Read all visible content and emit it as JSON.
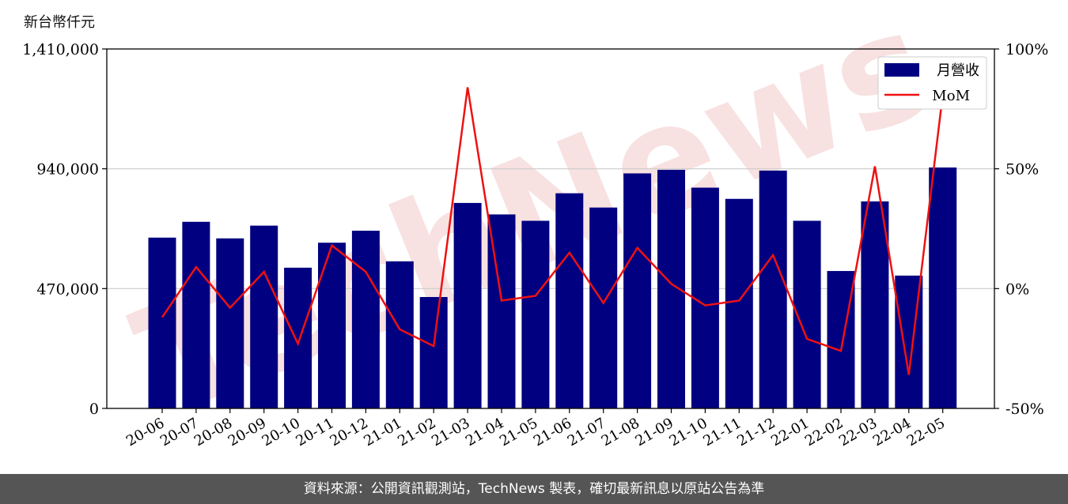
{
  "colors": {
    "bar": "#000080",
    "line": "#ee1111",
    "grid": "#cccccc",
    "watermark": "#f3c9c9",
    "footer_bg": "#555555"
  },
  "unit_label": "新台幣仟元",
  "watermark_text": "TechNews",
  "footer_text": "資料來源：公開資訊觀測站，TechNews 製表，確切最新訊息以原站公告為準",
  "chart_data": {
    "type": "bar",
    "categories": [
      "20-06",
      "20-07",
      "20-08",
      "20-09",
      "20-10",
      "20-11",
      "20-12",
      "21-01",
      "21-02",
      "21-03",
      "21-04",
      "21-05",
      "21-06",
      "21-07",
      "21-08",
      "21-09",
      "21-10",
      "21-11",
      "21-12",
      "22-01",
      "22-02",
      "22-03",
      "22-04",
      "22-05"
    ],
    "series": [
      {
        "name": "月營收",
        "type": "bar",
        "axis": "left",
        "values": [
          670000,
          732000,
          667000,
          717000,
          552000,
          650000,
          697000,
          577000,
          437000,
          806000,
          761000,
          736000,
          844000,
          788000,
          922000,
          936000,
          866000,
          822000,
          933000,
          736000,
          539000,
          812000,
          521000,
          945000
        ]
      },
      {
        "name": "MoM",
        "type": "line",
        "axis": "right",
        "values": [
          -12,
          9,
          -8,
          7,
          -23,
          18,
          7,
          -17,
          -24,
          84,
          -5,
          -3,
          15,
          -6,
          17,
          2,
          -7,
          -5,
          14,
          -21,
          -26,
          51,
          -36,
          81
        ]
      }
    ],
    "y_left": {
      "ylim": [
        0,
        1410000
      ],
      "ticks": [
        "0",
        "470,000",
        "940,000",
        "1,410,000"
      ],
      "tick_values": [
        0,
        470000,
        940000,
        1410000
      ]
    },
    "y_right": {
      "ylim": [
        -50,
        100
      ],
      "ticks": [
        "-50%",
        "0%",
        "50%",
        "100%"
      ],
      "tick_values": [
        -50,
        0,
        50,
        100
      ]
    },
    "grid": "horizontal",
    "legend": "top-right"
  }
}
